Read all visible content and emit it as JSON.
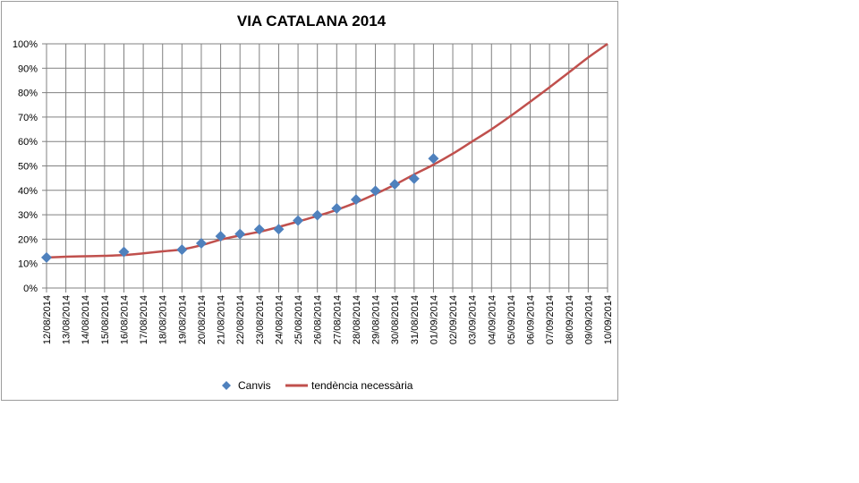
{
  "chart_data": {
    "type": "line",
    "title": "VIA CATALANA 2014",
    "xlabel": "",
    "ylabel": "",
    "ylim": [
      0,
      100
    ],
    "y_ticks": [
      "0%",
      "10%",
      "20%",
      "30%",
      "40%",
      "50%",
      "60%",
      "70%",
      "80%",
      "90%",
      "100%"
    ],
    "categories": [
      "12/08/2014",
      "13/08/2014",
      "14/08/2014",
      "15/08/2014",
      "16/08/2014",
      "17/08/2014",
      "18/08/2014",
      "19/08/2014",
      "20/08/2014",
      "21/08/2014",
      "22/08/2014",
      "23/08/2014",
      "24/08/2014",
      "25/08/2014",
      "26/08/2014",
      "27/08/2014",
      "28/08/2014",
      "29/08/2014",
      "30/08/2014",
      "31/08/2014",
      "01/09/2014",
      "02/09/2014",
      "03/09/2014",
      "04/09/2014",
      "05/09/2014",
      "06/09/2014",
      "07/09/2014",
      "08/09/2014",
      "09/09/2014",
      "10/09/2014"
    ],
    "grid": true,
    "legend_position": "bottom",
    "series": [
      {
        "name": "Canvis",
        "kind": "scatter",
        "marker": "diamond",
        "color": "#4f81bd",
        "points": [
          {
            "x": "12/08/2014",
            "y": 12.5
          },
          {
            "x": "16/08/2014",
            "y": 14.8
          },
          {
            "x": "19/08/2014",
            "y": 15.7
          },
          {
            "x": "20/08/2014",
            "y": 18.3
          },
          {
            "x": "21/08/2014",
            "y": 21.2
          },
          {
            "x": "22/08/2014",
            "y": 22.1
          },
          {
            "x": "23/08/2014",
            "y": 24.0
          },
          {
            "x": "24/08/2014",
            "y": 24.1
          },
          {
            "x": "25/08/2014",
            "y": 27.6
          },
          {
            "x": "26/08/2014",
            "y": 29.8
          },
          {
            "x": "27/08/2014",
            "y": 32.6
          },
          {
            "x": "28/08/2014",
            "y": 36.2
          },
          {
            "x": "29/08/2014",
            "y": 39.8
          },
          {
            "x": "30/08/2014",
            "y": 42.5
          },
          {
            "x": "31/08/2014",
            "y": 44.8
          },
          {
            "x": "01/09/2014",
            "y": 53.0
          }
        ]
      },
      {
        "name": "tendència necessària",
        "kind": "line",
        "color": "#c0504d",
        "values": [
          12.5,
          12.8,
          13.0,
          13.2,
          13.5,
          14.2,
          15.0,
          15.8,
          17.5,
          19.8,
          21.5,
          23.0,
          25.0,
          27.2,
          29.5,
          32.0,
          35.0,
          38.5,
          42.3,
          46.5,
          50.5,
          55.0,
          60.0,
          65.0,
          70.5,
          76.3,
          82.2,
          88.3,
          94.4,
          100.0
        ]
      }
    ]
  }
}
